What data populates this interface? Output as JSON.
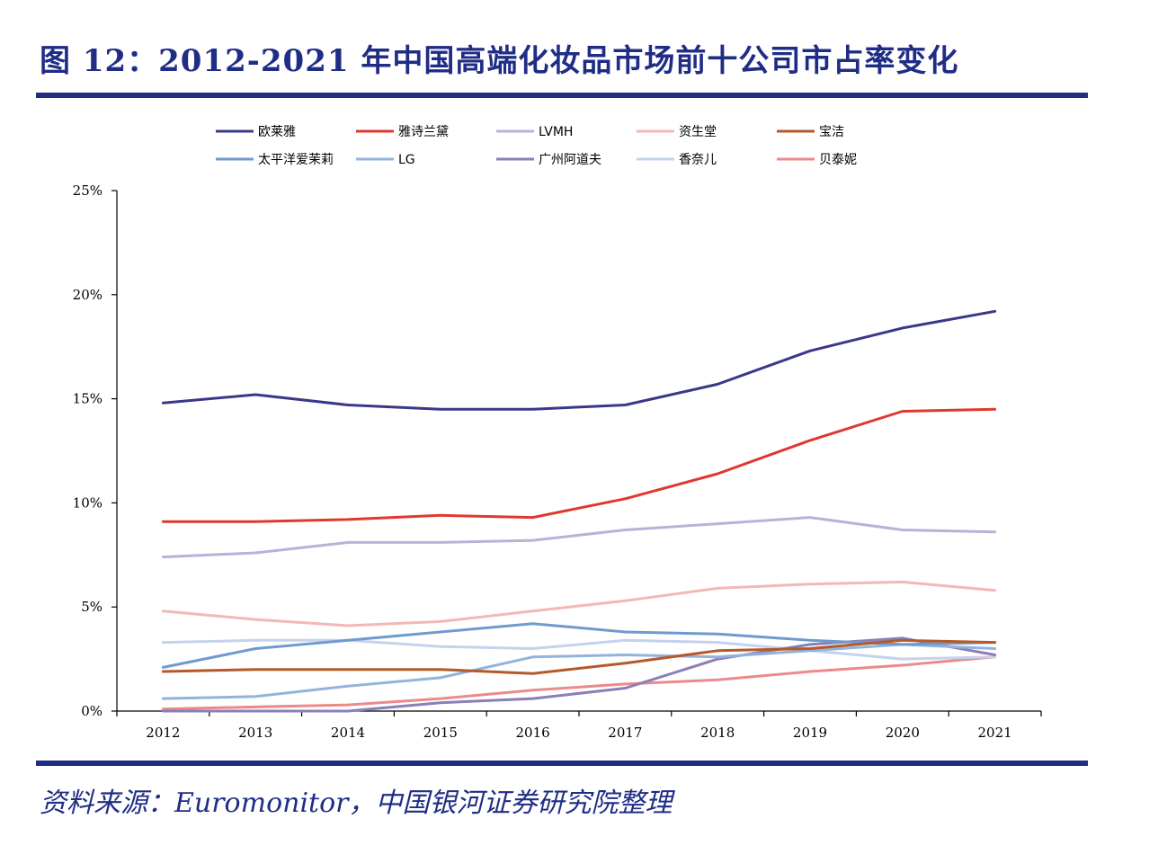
{
  "header": {
    "title": "图 12：2012-2021 年中国高端化妆品市场前十公司市占率变化"
  },
  "footer": {
    "source": "资料来源：Euromonitor，中国银河证券研究院整理"
  },
  "colors": {
    "brand_navy": "#1f2d85"
  },
  "chart_data": {
    "type": "line",
    "x": [
      "2012",
      "2013",
      "2014",
      "2015",
      "2016",
      "2017",
      "2018",
      "2019",
      "2020",
      "2021"
    ],
    "ylim": [
      0,
      25
    ],
    "yticks": [
      0,
      5,
      10,
      15,
      20,
      25
    ],
    "ytick_labels": [
      "0%",
      "5%",
      "10%",
      "15%",
      "20%",
      "25%"
    ],
    "grid": false,
    "legend_position": "top",
    "series": [
      {
        "name": "欧莱雅",
        "color": "#3a3888",
        "values": [
          14.8,
          15.2,
          14.7,
          14.5,
          14.5,
          14.7,
          15.7,
          17.3,
          18.4,
          19.2
        ]
      },
      {
        "name": "雅诗兰黛",
        "color": "#e0382e",
        "values": [
          9.1,
          9.1,
          9.2,
          9.4,
          9.3,
          10.2,
          11.4,
          13.0,
          14.4,
          14.5
        ]
      },
      {
        "name": "LVMH",
        "color": "#b6b3d8",
        "values": [
          7.4,
          7.6,
          8.1,
          8.1,
          8.2,
          8.7,
          9.0,
          9.3,
          8.7,
          8.6
        ]
      },
      {
        "name": "资生堂",
        "color": "#f2b8b6",
        "values": [
          4.8,
          4.4,
          4.1,
          4.3,
          4.8,
          5.3,
          5.9,
          6.1,
          6.2,
          5.8
        ]
      },
      {
        "name": "宝洁",
        "color": "#b5592b",
        "values": [
          1.9,
          2.0,
          2.0,
          2.0,
          1.8,
          2.3,
          2.9,
          3.0,
          3.4,
          3.3
        ]
      },
      {
        "name": "太平洋爱茉莉",
        "color": "#6f9acf",
        "values": [
          2.1,
          3.0,
          3.4,
          3.8,
          4.2,
          3.8,
          3.7,
          3.4,
          3.2,
          3.3
        ]
      },
      {
        "name": "LG",
        "color": "#93b3dc",
        "values": [
          0.6,
          0.7,
          1.2,
          1.6,
          2.6,
          2.7,
          2.6,
          2.9,
          3.2,
          3.0
        ]
      },
      {
        "name": "广州阿道夫",
        "color": "#8a7fb8",
        "values": [
          0.0,
          0.0,
          0.0,
          0.4,
          0.6,
          1.1,
          2.5,
          3.2,
          3.5,
          2.7
        ]
      },
      {
        "name": "香奈儿",
        "color": "#c5d2ec",
        "values": [
          3.3,
          3.4,
          3.4,
          3.1,
          3.0,
          3.4,
          3.3,
          2.9,
          2.5,
          2.6
        ]
      },
      {
        "name": "贝泰妮",
        "color": "#ec8a8a",
        "values": [
          0.1,
          0.2,
          0.3,
          0.6,
          1.0,
          1.3,
          1.5,
          1.9,
          2.2,
          2.6
        ]
      }
    ]
  }
}
